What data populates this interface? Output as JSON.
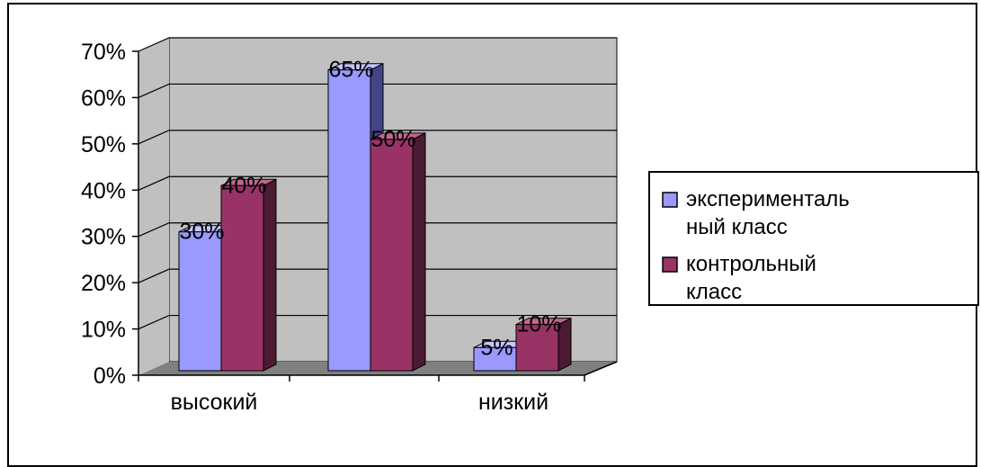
{
  "chart_data": {
    "type": "bar",
    "title": "",
    "categories": [
      "высокий",
      "",
      "низкий"
    ],
    "series": [
      {
        "name": "экспериментальный класс",
        "values": [
          30,
          65,
          5
        ],
        "labels": [
          "30%",
          "65%",
          "5%"
        ]
      },
      {
        "name": "контрольный класс",
        "values": [
          40,
          50,
          10
        ],
        "labels": [
          "40%",
          "50%",
          "10%"
        ]
      }
    ],
    "ylim": [
      0,
      70
    ],
    "yticks": [
      "0%",
      "10%",
      "20%",
      "30%",
      "40%",
      "50%",
      "60%",
      "70%"
    ],
    "legend": {
      "placement": "right",
      "lines": [
        [
          "эксперименталь",
          "ный класс"
        ],
        [
          "контрольный",
          "класс"
        ]
      ]
    },
    "colors": {
      "series1_front": "#9999FF",
      "series1_side": "#444488",
      "series1_top": "#C4C4FF",
      "series2_front": "#993366",
      "series2_side": "#4D1A33",
      "series2_top": "#C2668F",
      "plot_wall": "#C0C0C0",
      "plot_floor": "#808080"
    }
  }
}
